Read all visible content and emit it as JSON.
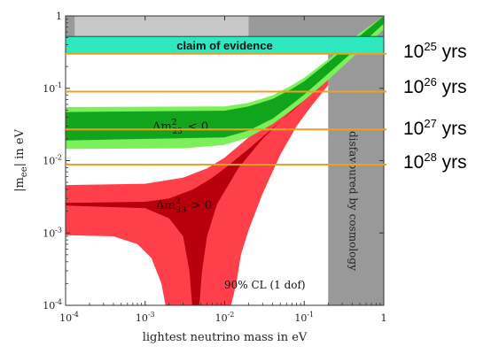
{
  "chart_data": {
    "type": "area",
    "xlabel": "lightest neutrino mass in eV",
    "ylabel": "|m_ee| in eV",
    "x_scale": "log",
    "y_scale": "log",
    "xlim": [
      0.0001,
      1
    ],
    "ylim": [
      0.0001,
      1
    ],
    "x_tick_labels": [
      "10^-4",
      "10^-3",
      "10^-2",
      "10^-1",
      "1"
    ],
    "y_tick_labels": [
      "10^-4",
      "10^-3",
      "10^-2",
      "10^-1",
      "1"
    ],
    "x_ticks": [
      0.0001,
      0.001,
      0.01,
      0.1,
      1
    ],
    "y_ticks": [
      0.0001,
      0.001,
      0.01,
      0.1,
      1
    ],
    "regions": [
      {
        "name": "Δm²₂₃ < 0",
        "label_main": "Δm",
        "label_sup": "2",
        "label_sub": "23",
        "label_rel": "< 0",
        "color_outer": "#7CF05A",
        "color_inner": "#10A51A",
        "outer_lower": [
          [
            0.0001,
            0.0145
          ],
          [
            0.003,
            0.0148
          ],
          [
            0.01,
            0.0165
          ],
          [
            0.02,
            0.021
          ],
          [
            0.04,
            0.032
          ],
          [
            0.07,
            0.05
          ],
          [
            0.1,
            0.068
          ],
          [
            0.2,
            0.13
          ],
          [
            0.5,
            0.33
          ],
          [
            1,
            0.65
          ]
        ],
        "outer_upper": [
          [
            0.0001,
            0.055
          ],
          [
            0.01,
            0.056
          ],
          [
            0.02,
            0.063
          ],
          [
            0.04,
            0.08
          ],
          [
            0.07,
            0.11
          ],
          [
            0.1,
            0.14
          ],
          [
            0.2,
            0.25
          ],
          [
            0.5,
            0.58
          ],
          [
            1,
            1
          ]
        ],
        "inner_lower": [
          [
            0.0001,
            0.019
          ],
          [
            0.01,
            0.021
          ],
          [
            0.02,
            0.026
          ],
          [
            0.04,
            0.038
          ],
          [
            0.07,
            0.06
          ],
          [
            0.1,
            0.082
          ],
          [
            0.2,
            0.16
          ],
          [
            0.5,
            0.39
          ],
          [
            1,
            0.78
          ]
        ],
        "inner_upper": [
          [
            0.0001,
            0.047
          ],
          [
            0.01,
            0.049
          ],
          [
            0.02,
            0.056
          ],
          [
            0.04,
            0.071
          ],
          [
            0.07,
            0.098
          ],
          [
            0.1,
            0.125
          ],
          [
            0.2,
            0.23
          ],
          [
            0.5,
            0.53
          ],
          [
            1,
            1
          ]
        ]
      },
      {
        "name": "Δm²₂₃ > 0",
        "label_main": "Δm",
        "label_sup": "2",
        "label_sub": "23",
        "label_rel": "> 0",
        "color_outer": "#FF3F4A",
        "color_inner": "#B8000C",
        "outer_upper": [
          [
            0.0001,
            0.0046
          ],
          [
            0.001,
            0.0048
          ],
          [
            0.003,
            0.0058
          ],
          [
            0.006,
            0.0078
          ],
          [
            0.01,
            0.011
          ],
          [
            0.02,
            0.021
          ],
          [
            0.04,
            0.04
          ],
          [
            0.07,
            0.068
          ],
          [
            0.1,
            0.095
          ],
          [
            0.2,
            0.18
          ]
        ],
        "outer_lower": [
          [
            0.0001,
            0.00093
          ],
          [
            0.0004,
            0.0009
          ],
          [
            0.0008,
            0.0007
          ],
          [
            0.0012,
            0.00045
          ],
          [
            0.0016,
            0.0002
          ],
          [
            0.0018,
            0.0001
          ],
          [
            0.012,
            0.0001
          ],
          [
            0.014,
            0.0002
          ],
          [
            0.016,
            0.0005
          ],
          [
            0.02,
            0.0011
          ],
          [
            0.03,
            0.0035
          ],
          [
            0.05,
            0.012
          ],
          [
            0.08,
            0.03
          ],
          [
            0.12,
            0.055
          ],
          [
            0.2,
            0.11
          ]
        ],
        "inner_upper": [
          [
            0.0001,
            0.0026
          ],
          [
            0.001,
            0.0027
          ],
          [
            0.002,
            0.003
          ],
          [
            0.004,
            0.004
          ],
          [
            0.007,
            0.0058
          ],
          [
            0.01,
            0.0078
          ],
          [
            0.02,
            0.0145
          ],
          [
            0.04,
            0.028
          ],
          [
            0.07,
            0.048
          ],
          [
            0.1,
            0.068
          ],
          [
            0.2,
            0.13
          ]
        ],
        "inner_lower": [
          [
            0.0001,
            0.0024
          ],
          [
            0.001,
            0.0022
          ],
          [
            0.002,
            0.0016
          ],
          [
            0.003,
            0.0009
          ],
          [
            0.0036,
            0.0003
          ],
          [
            0.0039,
            0.0001
          ],
          [
            0.0048,
            0.0001
          ],
          [
            0.0052,
            0.0003
          ],
          [
            0.006,
            0.0009
          ],
          [
            0.008,
            0.0025
          ],
          [
            0.015,
            0.008
          ],
          [
            0.03,
            0.02
          ],
          [
            0.06,
            0.042
          ],
          [
            0.1,
            0.072
          ],
          [
            0.2,
            0.14
          ]
        ]
      }
    ],
    "shaded_regions": {
      "top_band_ylim": [
        0.38,
        1
      ],
      "top_band_color": "#9A9A9A",
      "top_band_light_x": [
        0.00013,
        0.02
      ],
      "top_band_light_color": "#C8C8C8",
      "right_band_xlim": [
        0.2,
        1
      ],
      "right_band_color": "#999999"
    },
    "evidence_band": {
      "label": "claim of evidence",
      "ylim": [
        0.3,
        0.52
      ],
      "color": "#2EE8C0"
    },
    "half_life_lines": [
      {
        "y": 0.3,
        "label_base": "10",
        "label_exp": "25",
        "label_unit": " yrs"
      },
      {
        "y": 0.09,
        "label_base": "10",
        "label_exp": "26",
        "label_unit": " yrs"
      },
      {
        "y": 0.027,
        "label_base": "10",
        "label_exp": "27",
        "label_unit": " yrs"
      },
      {
        "y": 0.0088,
        "label_base": "10",
        "label_exp": "28",
        "label_unit": " yrs"
      }
    ],
    "half_life_line_color": "#F0A020",
    "annotations": {
      "cl_label": "90% CL (1 dof)",
      "disfavoured_label": "disfavoured by cosmology"
    },
    "axis_labels": {
      "x": "lightest neutrino mass in eV",
      "y_prefix": "|m",
      "y_sub": "ee",
      "y_suffix": "| in eV"
    }
  }
}
